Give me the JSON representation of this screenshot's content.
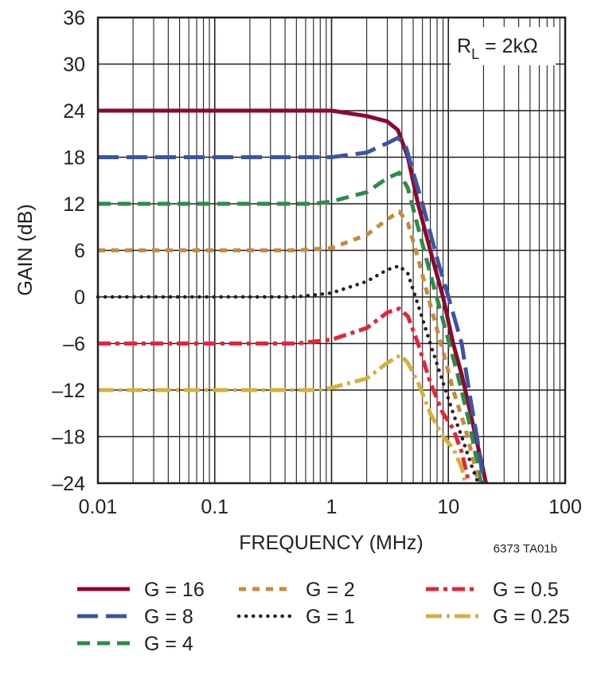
{
  "chart_data": {
    "type": "line",
    "xlabel": "FREQUENCY (MHz)",
    "ylabel": "GAIN (dB)",
    "xscale": "log",
    "xlim": [
      0.01,
      100
    ],
    "ylim": [
      -24,
      36
    ],
    "xticks": [
      "0.01",
      "0.1",
      "1",
      "10",
      "100"
    ],
    "yticks": [
      "36",
      "30",
      "24",
      "18",
      "12",
      "6",
      "0",
      "–6",
      "–12",
      "–18",
      "–24"
    ],
    "grid": true,
    "annotation": {
      "main": "R",
      "sub": "L",
      "rest": " = 2kΩ"
    },
    "footnote": "6373 TA01b",
    "legend_position": "bottom",
    "series": [
      {
        "name": "G = 16",
        "color": "#8b0a2e",
        "style": "solid",
        "points": [
          [
            0.01,
            24
          ],
          [
            1,
            24
          ],
          [
            2,
            23.3
          ],
          [
            3,
            22.6
          ],
          [
            3.7,
            21.5
          ],
          [
            4.5,
            18
          ],
          [
            5.5,
            12
          ],
          [
            7,
            6
          ],
          [
            9,
            0
          ],
          [
            11,
            -6
          ],
          [
            13,
            -10
          ],
          [
            16,
            -16
          ],
          [
            19,
            -21
          ],
          [
            21,
            -24
          ]
        ]
      },
      {
        "name": "G = 8",
        "color": "#3b55a4",
        "style": "longdash",
        "points": [
          [
            0.01,
            18
          ],
          [
            1,
            18
          ],
          [
            2,
            18.6
          ],
          [
            3,
            19.8
          ],
          [
            3.7,
            20.5
          ],
          [
            4.3,
            19.5
          ],
          [
            5,
            16
          ],
          [
            6,
            12
          ],
          [
            8,
            5
          ],
          [
            10,
            0
          ],
          [
            13,
            -6
          ],
          [
            15,
            -12
          ],
          [
            18,
            -19
          ],
          [
            20,
            -24
          ]
        ]
      },
      {
        "name": "G = 4",
        "color": "#2e8b4a",
        "style": "dash",
        "points": [
          [
            0.01,
            12
          ],
          [
            0.7,
            12
          ],
          [
            1,
            12.3
          ],
          [
            2,
            13.5
          ],
          [
            3,
            15.3
          ],
          [
            3.8,
            16
          ],
          [
            4.5,
            14
          ],
          [
            5.5,
            9
          ],
          [
            7,
            3
          ],
          [
            9,
            -3
          ],
          [
            12,
            -10
          ],
          [
            15,
            -16
          ],
          [
            18,
            -22
          ],
          [
            19,
            -24
          ]
        ]
      },
      {
        "name": "G = 2",
        "color": "#c98a3b",
        "style": "shortdash",
        "points": [
          [
            0.01,
            6
          ],
          [
            0.5,
            6
          ],
          [
            1,
            6.3
          ],
          [
            2,
            8
          ],
          [
            3,
            10
          ],
          [
            3.8,
            11
          ],
          [
            4.5,
            9.5
          ],
          [
            5.5,
            5
          ],
          [
            7,
            -1
          ],
          [
            9,
            -7
          ],
          [
            11,
            -12
          ],
          [
            14,
            -17
          ],
          [
            17,
            -22
          ],
          [
            18,
            -24
          ]
        ]
      },
      {
        "name": "G = 1",
        "color": "#231f20",
        "style": "dotted",
        "points": [
          [
            0.01,
            0
          ],
          [
            0.5,
            0
          ],
          [
            1,
            0.5
          ],
          [
            2,
            2
          ],
          [
            3,
            3.5
          ],
          [
            3.8,
            4
          ],
          [
            4.5,
            3
          ],
          [
            5.5,
            -1
          ],
          [
            7,
            -6
          ],
          [
            9,
            -11
          ],
          [
            11,
            -15
          ],
          [
            13,
            -18
          ],
          [
            16,
            -22
          ],
          [
            18,
            -24
          ]
        ]
      },
      {
        "name": "G = 0.5",
        "color": "#e3263a",
        "style": "dashdot2",
        "points": [
          [
            0.01,
            -6
          ],
          [
            0.5,
            -6
          ],
          [
            1,
            -5.5
          ],
          [
            2,
            -4
          ],
          [
            3,
            -2
          ],
          [
            3.8,
            -1.5
          ],
          [
            4.5,
            -2.5
          ],
          [
            5.5,
            -6
          ],
          [
            7,
            -11
          ],
          [
            9,
            -15
          ],
          [
            11,
            -17
          ],
          [
            13,
            -20
          ],
          [
            15,
            -24
          ]
        ]
      },
      {
        "name": "G = 0.25",
        "color": "#d4b13a",
        "style": "dashdot",
        "points": [
          [
            0.01,
            -12
          ],
          [
            0.8,
            -12
          ],
          [
            1,
            -11.7
          ],
          [
            2,
            -10.5
          ],
          [
            3,
            -8.5
          ],
          [
            3.9,
            -7.5
          ],
          [
            4.5,
            -8.5
          ],
          [
            5.5,
            -11
          ],
          [
            7,
            -15
          ],
          [
            9,
            -18
          ],
          [
            11,
            -19.5
          ],
          [
            13,
            -22
          ],
          [
            14,
            -24
          ]
        ]
      }
    ]
  }
}
